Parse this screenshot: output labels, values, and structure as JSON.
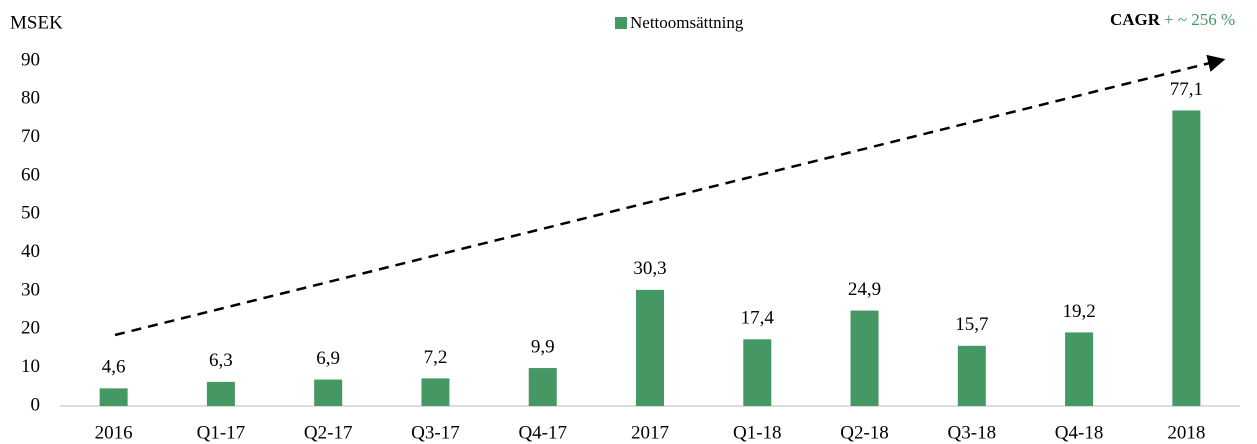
{
  "chart_data": {
    "type": "bar",
    "y_axis_label": "MSEK",
    "annotation": {
      "bold": "CAGR",
      "text": "+ ~ 256 %"
    },
    "categories": [
      "2016",
      "Q1-17",
      "Q2-17",
      "Q3-17",
      "Q4-17",
      "2017",
      "Q1-18",
      "Q2-18",
      "Q3-18",
      "Q4-18",
      "2018"
    ],
    "series": [
      {
        "name": "Nettoomsättning",
        "color": "#459764",
        "values": [
          4.6,
          6.3,
          6.9,
          7.2,
          9.9,
          30.3,
          17.4,
          24.9,
          15.7,
          19.2,
          77.1
        ],
        "value_labels": [
          "4,6",
          "6,3",
          "6,9",
          "7,2",
          "9,9",
          "30,3",
          "17,4",
          "24,9",
          "15,7",
          "19,2",
          "77,1"
        ]
      }
    ],
    "ylim": [
      0,
      90
    ],
    "yticks": [
      0,
      10,
      20,
      30,
      40,
      50,
      60,
      70,
      80,
      90
    ],
    "grid": false
  }
}
